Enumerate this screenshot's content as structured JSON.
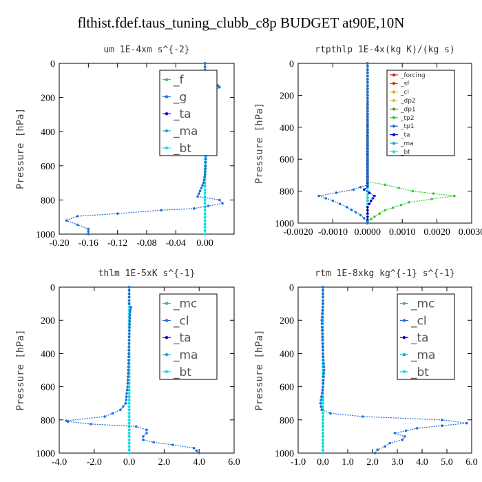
{
  "figure_title": "flthist.fdef.taus_tuning_clubb_c8p  BUDGET at90E,10N",
  "chart_data": [
    {
      "type": "line",
      "title": "um  1E-4xm s^{-2}",
      "ylabel": "Pressure [hPa]",
      "xlim": [
        -0.2,
        0.04
      ],
      "ylim": [
        1000,
        0
      ],
      "xticks": [
        "-0.20",
        "-0.16",
        "-0.12",
        "-0.08",
        "-0.04",
        "0.00"
      ],
      "xtick_values": [
        -0.2,
        -0.16,
        -0.12,
        -0.08,
        -0.04,
        0.0
      ],
      "yticks": [
        "0",
        "200",
        "400",
        "600",
        "800",
        "1000"
      ],
      "ytick_values": [
        0,
        200,
        400,
        600,
        800,
        1000
      ],
      "legend_position": "top-right",
      "legend_size": "large",
      "series": [
        {
          "name": "_f",
          "color": "#33cc33",
          "x": [
            0.0,
            0.0
          ],
          "y": [
            0,
            1000
          ]
        },
        {
          "name": "_g",
          "color": "#1f6fd6",
          "x": [
            0.0,
            0.0,
            0.0,
            0.002,
            0.005,
            0.01,
            0.018,
            0.02,
            0.012,
            0.006,
            0.002,
            0.0,
            0.0,
            0.0,
            0.001,
            0.002,
            0.001,
            0.0,
            -0.002,
            -0.005,
            -0.01,
            0.02,
            0.024,
            -0.015,
            -0.06,
            -0.12,
            -0.175,
            -0.19,
            -0.175,
            -0.16,
            -0.16
          ],
          "y": [
            0,
            40,
            80,
            100,
            110,
            120,
            130,
            140,
            160,
            180,
            200,
            250,
            300,
            350,
            400,
            500,
            600,
            650,
            700,
            730,
            780,
            800,
            820,
            850,
            860,
            880,
            895,
            920,
            945,
            970,
            1000
          ]
        },
        {
          "name": "_ta",
          "color": "#0000cc",
          "x": [
            0.0,
            0.0
          ],
          "y": [
            0,
            1000
          ]
        },
        {
          "name": "_ma",
          "color": "#00b0c8",
          "x": [
            0.0,
            0.0
          ],
          "y": [
            0,
            1000
          ]
        },
        {
          "name": "_bt",
          "color": "#00e5e5",
          "x": [
            0.0,
            0.0
          ],
          "y": [
            0,
            1000
          ]
        }
      ]
    },
    {
      "type": "line",
      "title": "rtpthlp  1E-4x(kg K)/(kg s)",
      "ylabel": "Pressure [hPa]",
      "xlim": [
        -0.002,
        0.003
      ],
      "ylim": [
        1000,
        0
      ],
      "xticks": [
        "-0.0020",
        "-0.0010",
        "0.0000",
        "0.0010",
        "0.0020",
        "0.0030"
      ],
      "xtick_values": [
        -0.002,
        -0.001,
        0.0,
        0.001,
        0.002,
        0.003
      ],
      "yticks": [
        "0",
        "200",
        "400",
        "600",
        "800",
        "1000"
      ],
      "ytick_values": [
        0,
        200,
        400,
        600,
        800,
        1000
      ],
      "legend_position": "top-right",
      "legend_size": "small",
      "series": [
        {
          "name": "_forcing",
          "color": "#cc2222",
          "x": [
            0.0,
            0.0
          ],
          "y": [
            0,
            1000
          ]
        },
        {
          "name": "_sf",
          "color": "#dd3300",
          "x": [
            0.0,
            0.0
          ],
          "y": [
            0,
            1000
          ]
        },
        {
          "name": "_cl",
          "color": "#e6a800",
          "x": [
            0.0,
            0.0
          ],
          "y": [
            0,
            1000
          ]
        },
        {
          "name": "_dp2",
          "color": "#d4c040",
          "x": [
            0.0,
            0.0
          ],
          "y": [
            0,
            1000
          ]
        },
        {
          "name": "_dp1",
          "color": "#559933",
          "x": [
            0.0,
            0.0
          ],
          "y": [
            0,
            1000
          ]
        },
        {
          "name": "_tp2",
          "color": "#33cc33",
          "x": [
            0.0,
            0.0,
            0.0005,
            0.0013,
            0.0025,
            0.0012,
            0.0005,
            0.0002,
            0.0,
            0.0
          ],
          "y": [
            0,
            740,
            760,
            800,
            830,
            870,
            920,
            960,
            990,
            1000
          ]
        },
        {
          "name": "_tp1",
          "color": "#1f6fd6",
          "x": [
            0.0,
            0.0,
            -0.0004,
            -0.0009,
            -0.0014,
            -0.001,
            -0.0006,
            -0.0002,
            0.0,
            0.0
          ],
          "y": [
            0,
            760,
            790,
            810,
            830,
            860,
            900,
            950,
            990,
            1000
          ]
        },
        {
          "name": "_ta",
          "color": "#0000cc",
          "x": [
            0.0,
            0.0,
            -0.0001,
            0.0002,
            0.0001,
            0.0,
            0.0
          ],
          "y": [
            0,
            770,
            790,
            830,
            860,
            900,
            1000
          ]
        },
        {
          "name": "_ma",
          "color": "#00b0c8",
          "x": [
            0.0,
            0.0
          ],
          "y": [
            0,
            1000
          ]
        },
        {
          "name": "_bt",
          "color": "#00e5e5",
          "x": [
            0.0,
            0.0
          ],
          "y": [
            0,
            1000
          ]
        }
      ]
    },
    {
      "type": "line",
      "title": "thlm  1E-5xK s^{-1}",
      "ylabel": "Pressure [hPa]",
      "xlim": [
        -4.0,
        6.0
      ],
      "ylim": [
        1000,
        0
      ],
      "xticks": [
        "-4.0",
        "-2.0",
        "0.0",
        "2.0",
        "4.0",
        "6.0"
      ],
      "xtick_values": [
        -4.0,
        -2.0,
        0.0,
        2.0,
        4.0,
        6.0
      ],
      "yticks": [
        "0",
        "200",
        "400",
        "600",
        "800",
        "1000"
      ],
      "ytick_values": [
        0,
        200,
        400,
        600,
        800,
        1000
      ],
      "legend_position": "top-right",
      "legend_size": "large",
      "series": [
        {
          "name": "_mc",
          "color": "#33cc33",
          "x": [
            0.0,
            0.0
          ],
          "y": [
            0,
            1000
          ]
        },
        {
          "name": "_cl",
          "color": "#1f6fd6",
          "x": [
            0.0,
            0.0,
            0.1,
            0.05,
            0.0,
            -0.05,
            -0.1,
            -0.2,
            -0.5,
            -1.4,
            -3.6,
            -3.5,
            -2.2,
            0.4,
            1.0,
            1.0,
            0.8,
            0.8,
            1.4,
            2.5,
            3.7,
            4.0
          ],
          "y": [
            0,
            100,
            120,
            150,
            300,
            500,
            600,
            700,
            740,
            780,
            805,
            810,
            825,
            840,
            860,
            880,
            900,
            920,
            935,
            950,
            970,
            1000
          ]
        },
        {
          "name": "_ta",
          "color": "#0000cc",
          "x": [
            0.0,
            0.0
          ],
          "y": [
            0,
            1000
          ]
        },
        {
          "name": "_ma",
          "color": "#00b0c8",
          "x": [
            0.0,
            0.0
          ],
          "y": [
            0,
            1000
          ]
        },
        {
          "name": "_bt",
          "color": "#00e5e5",
          "x": [
            0.0,
            0.0
          ],
          "y": [
            0,
            1000
          ]
        }
      ]
    },
    {
      "type": "line",
      "title": "rtm  1E-8xkg kg^{-1} s^{-1}",
      "ylabel": "Pressure [hPa]",
      "xlim": [
        -1.0,
        6.0
      ],
      "ylim": [
        1000,
        0
      ],
      "xticks": [
        "-1.0",
        "0.0",
        "1.0",
        "2.0",
        "3.0",
        "4.0",
        "5.0",
        "6.0"
      ],
      "xtick_values": [
        -1.0,
        0.0,
        1.0,
        2.0,
        3.0,
        4.0,
        5.0,
        6.0
      ],
      "yticks": [
        "0",
        "200",
        "400",
        "600",
        "800",
        "1000"
      ],
      "ytick_values": [
        0,
        200,
        400,
        600,
        800,
        1000
      ],
      "legend_position": "top-right",
      "legend_size": "large",
      "series": [
        {
          "name": "_mc",
          "color": "#33cc33",
          "x": [
            0.0,
            0.0
          ],
          "y": [
            0,
            1000
          ]
        },
        {
          "name": "_cl",
          "color": "#1f6fd6",
          "x": [
            0.0,
            0.0,
            -0.05,
            0.0,
            0.05,
            0.0,
            -0.1,
            -0.05,
            0.3,
            1.6,
            4.8,
            5.8,
            3.8,
            2.9,
            3.3,
            3.2,
            2.7,
            2.5,
            2.2,
            2.1
          ],
          "y": [
            0,
            100,
            200,
            400,
            500,
            600,
            700,
            740,
            760,
            780,
            800,
            820,
            850,
            880,
            900,
            920,
            940,
            960,
            980,
            1000
          ]
        },
        {
          "name": "_ta",
          "color": "#0000cc",
          "x": [
            0.0,
            0.0
          ],
          "y": [
            0,
            1000
          ]
        },
        {
          "name": "_ma",
          "color": "#00b0c8",
          "x": [
            0.0,
            0.0
          ],
          "y": [
            0,
            1000
          ]
        },
        {
          "name": "_bt",
          "color": "#00e5e5",
          "x": [
            0.0,
            0.0
          ],
          "y": [
            0,
            1000
          ]
        }
      ]
    }
  ]
}
